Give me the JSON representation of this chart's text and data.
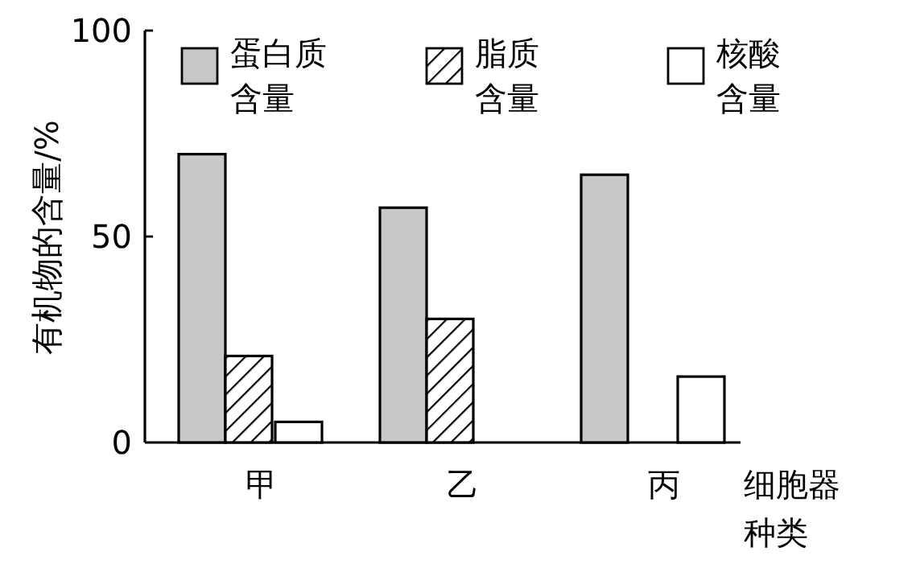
{
  "chart_data": {
    "type": "bar",
    "ylabel": "有机物的含量/%",
    "xlabel": "细胞器种类",
    "categories": [
      "甲",
      "乙",
      "丙"
    ],
    "series": [
      {
        "name": "蛋白质含量",
        "color": "#c8c8c8",
        "values": [
          70,
          57,
          65
        ]
      },
      {
        "name": "脂质含量",
        "color": "#000000",
        "values": [
          21,
          30,
          null
        ]
      },
      {
        "name": "核酸含量",
        "color": "#ffffff",
        "values": [
          5,
          null,
          16
        ]
      }
    ],
    "ylim": [
      0,
      100
    ],
    "yticks": [
      0,
      50,
      100
    ],
    "legend": "top",
    "grid": false
  }
}
